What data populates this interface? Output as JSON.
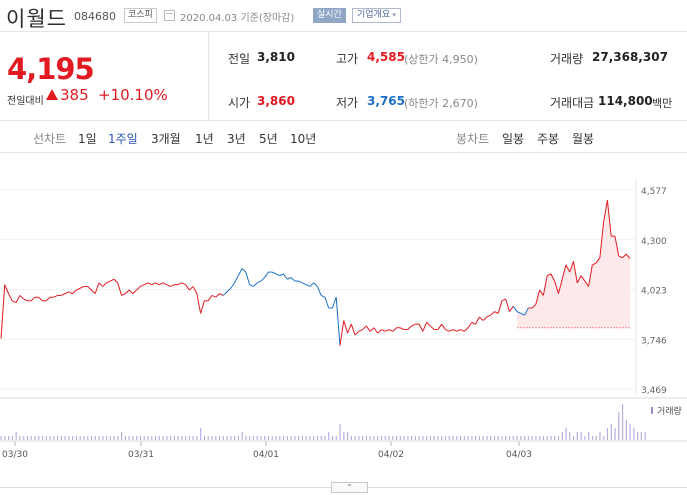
{
  "header": {
    "name": "이월드",
    "code": "084680",
    "market": "코스피",
    "date": "2020.04.03",
    "basis": "기준(장마감)",
    "realtime_label": "실시간",
    "company_label": "기업개요"
  },
  "quote": {
    "price": "4,195",
    "change_label": "전일대비",
    "change": "385",
    "change_pct": "+10.10%",
    "prev_label": "전일",
    "prev": "3,810",
    "high_label": "고가",
    "high": "4,585",
    "upper_limit": "(상한가 4,950)",
    "volume_label": "거래량",
    "volume": "27,368,307",
    "open_label": "시가",
    "open": "3,860",
    "low_label": "저가",
    "low": "3,765",
    "lower_limit": "(하한가 2,670)",
    "amount_label": "거래대금",
    "amount": "114,800",
    "amount_unit": "백만"
  },
  "tabs": {
    "line_label": "선차트",
    "line": [
      "1일",
      "1주일",
      "3개월",
      "1년",
      "3년",
      "5년",
      "10년"
    ],
    "active": "1주일",
    "candle_label": "봉차트",
    "candle": [
      "일봉",
      "주봉",
      "월봉"
    ]
  },
  "colors": {
    "up": "#e11a22",
    "down": "#1b6fc7",
    "accent": "#2a55b6"
  },
  "chart_data": {
    "type": "line",
    "title": "",
    "ylim": [
      3469,
      4577
    ],
    "y_ticks": [
      "4,577",
      "4,300",
      "4,023",
      "3,746",
      "3,469"
    ],
    "x_ticks": [
      "03/30",
      "03/31",
      "04/01",
      "04/02",
      "04/03"
    ],
    "reference_price": 3810,
    "volume_label": "거래량",
    "series": [
      {
        "values": [
          3750,
          4050,
          4000,
          3960,
          3950,
          3990,
          3970,
          3960,
          3960,
          3980,
          3980,
          3960,
          3960,
          3980,
          3980,
          3990,
          3990,
          4000,
          4010,
          4000,
          4020,
          4030,
          4040,
          4040,
          4020,
          4000,
          4060,
          4040,
          4060,
          4070,
          4080,
          4060,
          3990,
          4000,
          4020,
          4000,
          4020,
          4040,
          4050,
          4060,
          4050,
          4060,
          4050,
          4060,
          4050,
          4040,
          4050,
          4050,
          4060,
          4050,
          4020,
          4040,
          4000,
          3890,
          3960,
          3960,
          3990,
          3980,
          4000,
          3990,
          4010,
          4030,
          4060,
          4100,
          4140,
          4120,
          4050,
          4040,
          4060,
          4070,
          4090,
          4120,
          4120,
          4110,
          4100,
          4110,
          4080,
          4090,
          4070,
          4070,
          4060,
          4050,
          4040,
          4060,
          4040,
          3990,
          3980,
          3920,
          3920,
          3980,
          3710,
          3850,
          3780,
          3830,
          3770,
          3790,
          3800,
          3820,
          3790,
          3810,
          3780,
          3800,
          3790,
          3800,
          3790,
          3810,
          3810,
          3800,
          3800,
          3820,
          3830,
          3830,
          3790,
          3840,
          3820,
          3800,
          3800,
          3830,
          3800,
          3790,
          3800,
          3790,
          3800,
          3790,
          3810,
          3840,
          3830,
          3870,
          3850,
          3870,
          3880,
          3900,
          3890,
          3960,
          3970,
          3900,
          3930,
          3900,
          3890,
          3880,
          3920,
          3920,
          3940,
          4020,
          3990,
          4100,
          4110,
          4070,
          4000,
          4080,
          4160,
          4120,
          4180,
          4060,
          4100,
          4070,
          4040,
          4160,
          4170,
          4200,
          4400,
          4520,
          4320,
          4320,
          4210,
          4200,
          4220,
          4195
        ]
      }
    ],
    "volume": [
      1,
      1,
      1,
      1,
      2,
      1,
      1,
      1,
      1,
      1,
      1,
      1,
      1,
      1,
      1,
      1,
      1,
      1,
      1,
      1,
      1,
      1,
      1,
      1,
      1,
      1,
      1,
      1,
      1,
      1,
      1,
      1,
      2,
      1,
      1,
      1,
      1,
      1,
      1,
      1,
      1,
      1,
      1,
      1,
      1,
      1,
      1,
      1,
      1,
      1,
      1,
      1,
      1,
      3,
      1,
      1,
      1,
      1,
      1,
      1,
      1,
      1,
      1,
      1,
      2,
      1,
      1,
      1,
      1,
      1,
      1,
      1,
      1,
      1,
      1,
      1,
      1,
      1,
      1,
      1,
      1,
      1,
      1,
      1,
      1,
      1,
      1,
      2,
      1,
      1,
      4,
      2,
      2,
      1,
      1,
      1,
      1,
      1,
      1,
      1,
      1,
      1,
      1,
      1,
      1,
      1,
      1,
      1,
      1,
      1,
      1,
      1,
      1,
      1,
      1,
      1,
      1,
      1,
      1,
      1,
      1,
      1,
      1,
      1,
      1,
      1,
      1,
      1,
      1,
      1,
      1,
      1,
      1,
      1,
      1,
      1,
      1,
      1,
      1,
      1,
      1,
      1,
      1,
      1,
      1,
      1,
      1,
      1,
      1,
      2,
      3,
      2,
      1,
      2,
      2,
      1,
      2,
      1,
      1,
      2,
      1,
      3,
      4,
      3,
      7,
      9,
      5,
      4,
      3,
      2,
      2,
      2
    ]
  }
}
